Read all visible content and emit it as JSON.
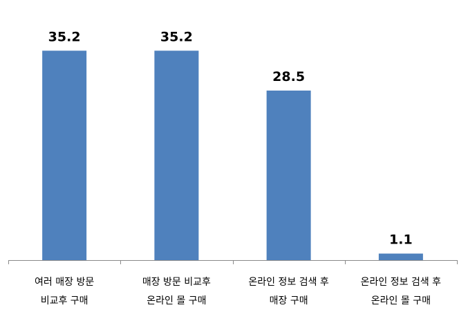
{
  "chart_data": {
    "type": "bar",
    "categories": [
      [
        "여러 매장 방문",
        "비교후 구매"
      ],
      [
        "매장 방문 비교후",
        "온라인 몰 구매"
      ],
      [
        "온라인 정보 검색 후",
        "매장 구매"
      ],
      [
        "온라인 정보 검색 후",
        "온라인 몰 구매"
      ]
    ],
    "values": [
      35.2,
      35.2,
      28.5,
      1.1
    ],
    "value_labels": [
      "35.2",
      "35.2",
      "28.5",
      "1.1"
    ],
    "ylim": [
      0,
      40
    ],
    "grid": false,
    "legend": "none",
    "colors": {
      "bar": "#4F81BD",
      "axis": "#898989"
    }
  }
}
